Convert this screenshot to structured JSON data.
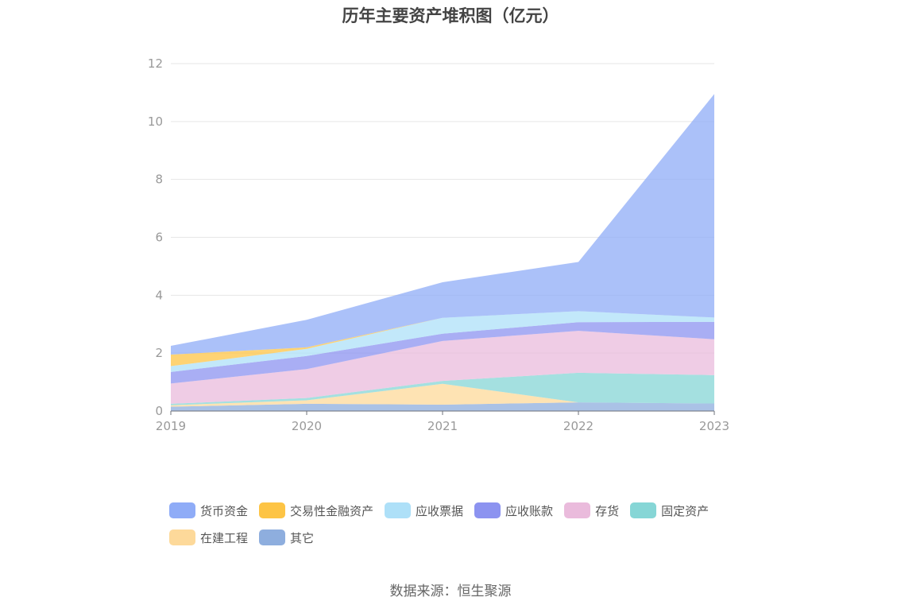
{
  "chart_data": {
    "type": "area",
    "stacked": true,
    "title": "历年主要资产堆积图（亿元）",
    "categories": [
      "2019",
      "2020",
      "2021",
      "2022",
      "2023"
    ],
    "ylim": [
      0,
      12
    ],
    "yticks": [
      "0",
      "2",
      "4",
      "6",
      "8",
      "10",
      "12"
    ],
    "grid": true,
    "legend_position": "bottom",
    "series": [
      {
        "name": "其它",
        "color": "#8eaede",
        "values": [
          0.15,
          0.25,
          0.22,
          0.3,
          0.26
        ]
      },
      {
        "name": "在建工程",
        "color": "#fdd99a",
        "values": [
          0.05,
          0.12,
          0.72,
          0.0,
          0.0
        ]
      },
      {
        "name": "固定资产",
        "color": "#86d6d6",
        "values": [
          0.05,
          0.08,
          0.1,
          1.02,
          0.98
        ]
      },
      {
        "name": "存货",
        "color": "#eabbdc",
        "values": [
          0.7,
          1.0,
          1.38,
          1.45,
          1.24
        ]
      },
      {
        "name": "应收账款",
        "color": "#8c93f0",
        "values": [
          0.4,
          0.45,
          0.25,
          0.3,
          0.6
        ]
      },
      {
        "name": "应收票据",
        "color": "#aee0f8",
        "values": [
          0.2,
          0.25,
          0.55,
          0.38,
          0.15
        ]
      },
      {
        "name": "交易性金融资产",
        "color": "#fdc445",
        "values": [
          0.4,
          0.05,
          0.0,
          0.0,
          0.0
        ]
      },
      {
        "name": "货币资金",
        "color": "#8facf7",
        "values": [
          0.3,
          0.95,
          1.23,
          1.7,
          7.72
        ]
      }
    ],
    "legend_order": [
      "货币资金",
      "交易性金融资产",
      "应收票据",
      "应收账款",
      "存货",
      "固定资产",
      "在建工程",
      "其它"
    ]
  },
  "source": "数据来源：恒生聚源"
}
